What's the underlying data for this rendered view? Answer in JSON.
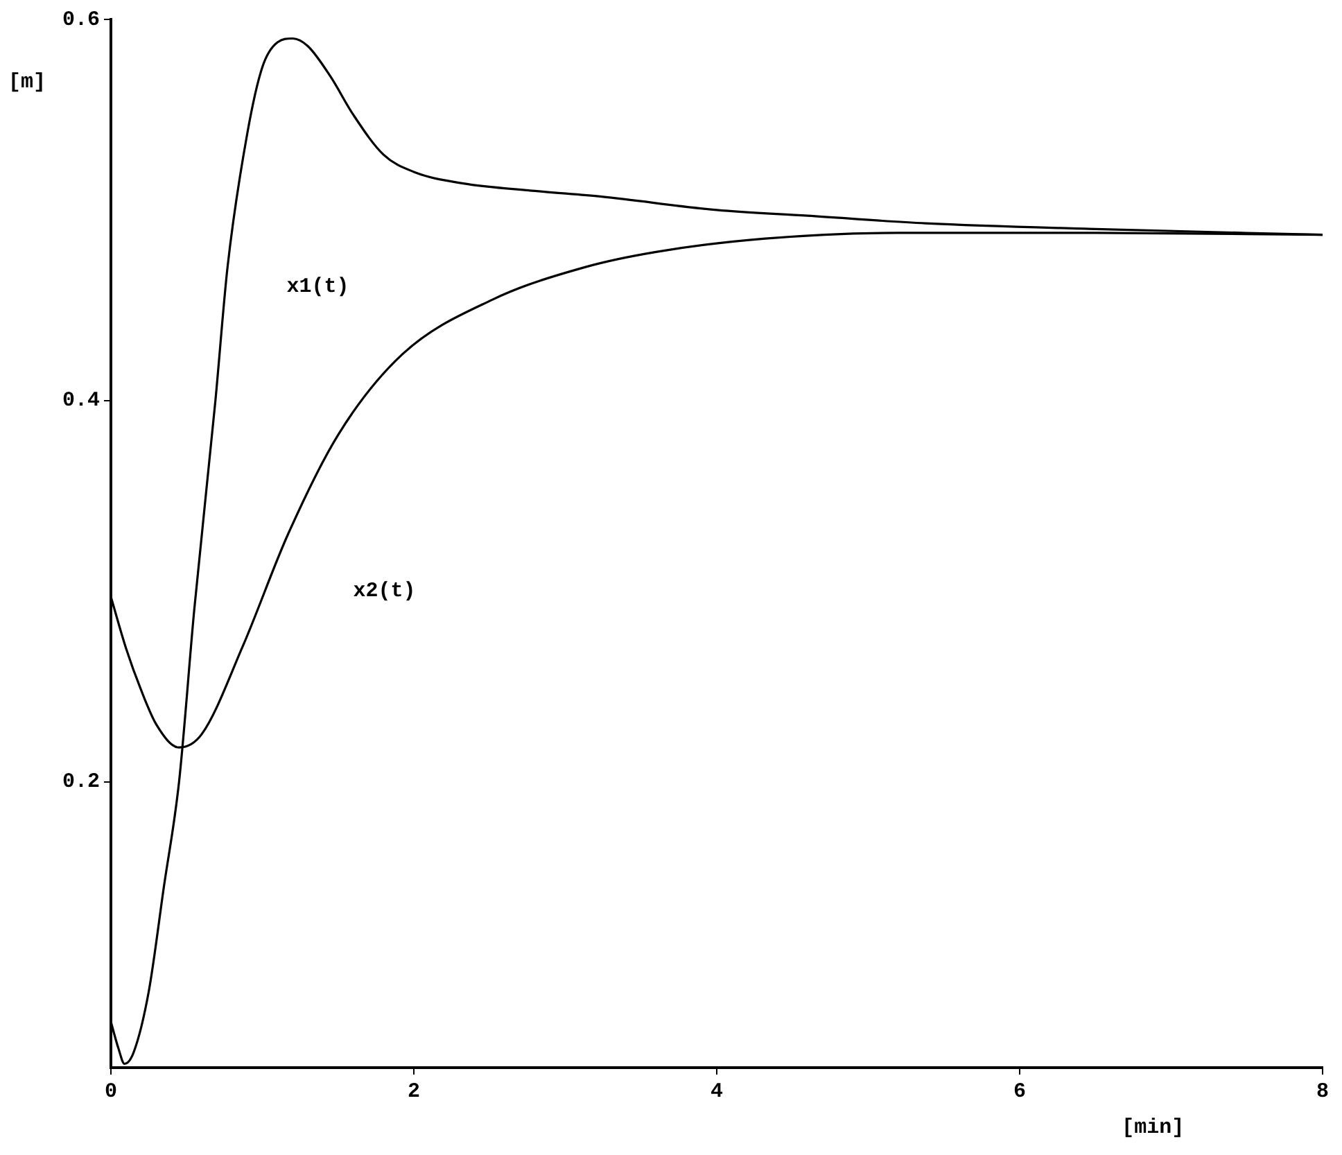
{
  "chart_data": {
    "type": "line",
    "xlabel": "[min]",
    "ylabel": "[m]",
    "xlim": [
      0,
      8
    ],
    "ylim": [
      0.05,
      0.6
    ],
    "xticks": [
      0,
      2,
      4,
      6,
      8
    ],
    "yticks": [
      0.2,
      0.4,
      0.6
    ],
    "grid": false,
    "legend": false,
    "marker": "none",
    "line_style": "solid",
    "series": [
      {
        "color": "#000000",
        "x": [
          0,
          0.05,
          0.09,
          0.15,
          0.25,
          0.35,
          0.45,
          0.55,
          0.69,
          0.77,
          0.9,
          1.0,
          1.1,
          1.2,
          1.3,
          1.45,
          1.6,
          1.8,
          2.0,
          2.32,
          2.8,
          3.24,
          4.0,
          4.6,
          5.38,
          6.5,
          8
        ],
        "values": [
          0.074,
          0.06,
          0.052,
          0.058,
          0.09,
          0.145,
          0.2,
          0.29,
          0.4,
          0.47,
          0.54,
          0.575,
          0.588,
          0.59,
          0.586,
          0.57,
          0.55,
          0.529,
          0.52,
          0.514,
          0.51,
          0.507,
          0.5,
          0.497,
          0.493,
          0.49,
          0.487
        ]
      },
      {
        "color": "#000000",
        "x": [
          0,
          0.1,
          0.2,
          0.3,
          0.45,
          0.6,
          0.87,
          1.17,
          1.5,
          1.92,
          2.52,
          3.13,
          3.6,
          4.32,
          5.2,
          6.5,
          8
        ],
        "values": [
          0.297,
          0.27,
          0.248,
          0.23,
          0.218,
          0.225,
          0.271,
          0.33,
          0.382,
          0.424,
          0.453,
          0.47,
          0.478,
          0.485,
          0.488,
          0.488,
          0.487
        ]
      }
    ],
    "annotations": [
      "x1(t)",
      "x2(t)"
    ]
  }
}
